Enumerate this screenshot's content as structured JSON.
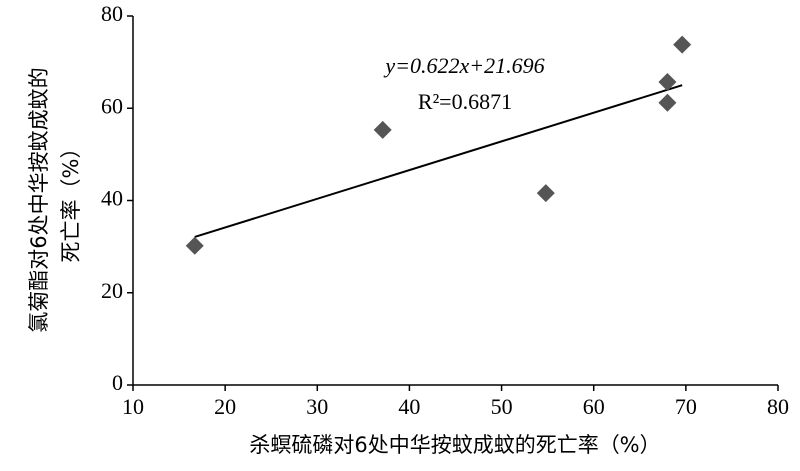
{
  "chart_data": {
    "type": "scatter",
    "x_label": "杀螟硫磷对6处中华按蚊成蚊的死亡率（%）",
    "y_label": [
      "氯菊酯对6处中华按蚊成蚊的",
      "死亡率（%）"
    ],
    "annotations": [
      "y=0.622x+21.696",
      "R²=0.6871"
    ],
    "x": [
      16.7,
      37.1,
      54.8,
      68.0,
      68.0,
      69.6
    ],
    "values": [
      30.2,
      55.3,
      41.6,
      65.7,
      61.2,
      73.8
    ],
    "color": "#555555",
    "trendline": {
      "x": [
        16.7,
        69.6
      ],
      "y": [
        32.1,
        65.0
      ],
      "color": "#000000"
    },
    "xlim": [
      10,
      80
    ],
    "xticks": [
      10,
      20,
      30,
      40,
      50,
      60,
      70,
      80
    ],
    "ylim": [
      0,
      80
    ],
    "yticks": [
      0,
      20,
      40,
      60,
      80
    ],
    "grid": false
  }
}
